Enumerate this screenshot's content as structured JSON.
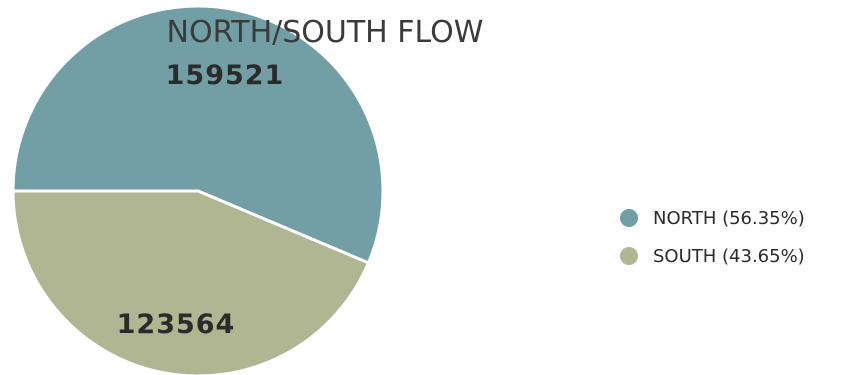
{
  "chart_data": {
    "type": "pie",
    "title": "NORTH/SOUTH FLOW",
    "slices": [
      {
        "label": "NORTH",
        "value": 159521,
        "percent_label": "56.35%",
        "legend": "NORTH (56.35%)",
        "color": "#729fa5"
      },
      {
        "label": "SOUTH",
        "value": 123564,
        "percent_label": "43.65%",
        "legend": "SOUTH (43.65%)",
        "color": "#b0b592"
      }
    ],
    "legend_position": "right"
  }
}
